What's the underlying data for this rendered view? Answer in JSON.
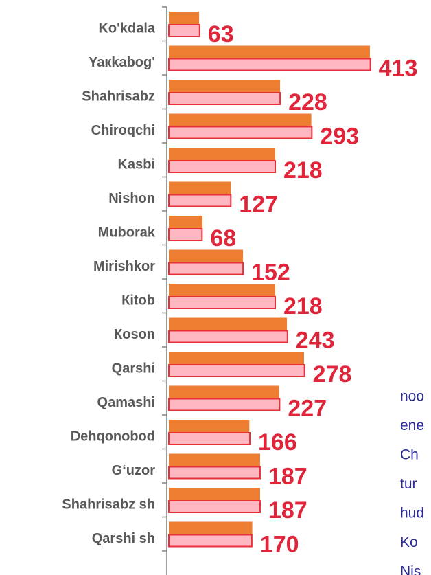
{
  "chart_data": {
    "type": "hbar",
    "categories": [
      "Ko'kdala",
      "Yaкkabog'",
      "Shahrisabz",
      "Chiroqchi",
      "Kasbi",
      "Nishon",
      "Muborak",
      "Mirishkor",
      "Кitob",
      "Кoson",
      "Qarshi",
      "Qamashi",
      "Dehqonobod",
      "G‘uzor",
      "Shahrisabz sh",
      "Qarshi sh"
    ],
    "series": [
      {
        "color": "#ed7d31",
        "values": [
          62,
          412,
          228,
          292,
          218,
          127,
          69,
          152,
          218,
          242,
          277,
          226,
          165,
          187,
          187,
          171
        ]
      },
      {
        "color": "#ffb8c2",
        "stroke": "#e8303a",
        "values": [
          63,
          413,
          228,
          293,
          218,
          127,
          68,
          152,
          218,
          243,
          278,
          227,
          166,
          187,
          187,
          170
        ],
        "labels": true
      }
    ],
    "xlim": [
      0,
      500
    ]
  },
  "side_text": [
    "noo",
    "ene",
    "Ch",
    "tur",
    "hud",
    "Ko",
    "Nis"
  ]
}
